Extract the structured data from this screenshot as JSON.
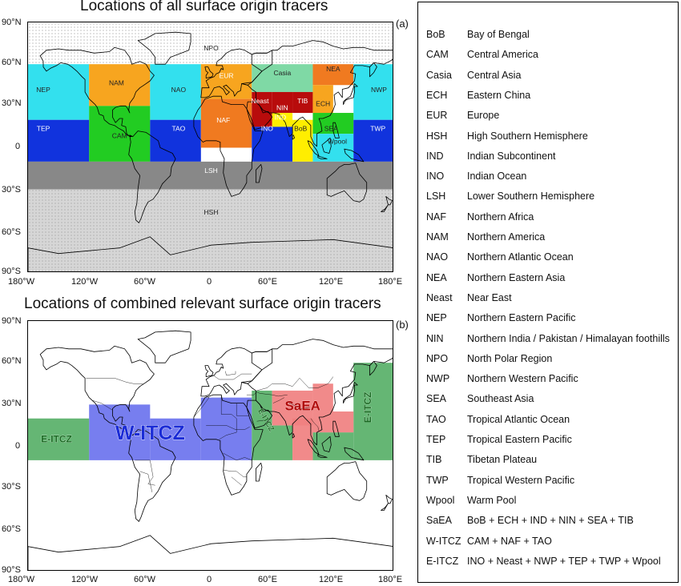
{
  "panel_a": {
    "title": "Locations of all surface origin tracers",
    "label": "(a)",
    "regions": [
      {
        "abbr": "NPO",
        "lon": [
          -180,
          180
        ],
        "lat": [
          60,
          90
        ],
        "color": "#ffffff",
        "text": "#222222"
      },
      {
        "abbr": "NEP",
        "lon": [
          -180,
          -120
        ],
        "lat": [
          20,
          60
        ],
        "color": "#33e0ee",
        "text": "#222222"
      },
      {
        "abbr": "NAM",
        "lon": [
          -120,
          -60
        ],
        "lat": [
          30,
          60
        ],
        "color": "#f7a51f",
        "text": "#222222"
      },
      {
        "abbr": "NAO",
        "lon": [
          -60,
          -10
        ],
        "lat": [
          20,
          60
        ],
        "color": "#33e0ee",
        "text": "#222222"
      },
      {
        "abbr": "EUR",
        "lon": [
          -10,
          40
        ],
        "lat": [
          35,
          60
        ],
        "color": "#f7a51f",
        "text": "#ffffff"
      },
      {
        "abbr": "Casia",
        "lon": [
          40,
          100
        ],
        "lat": [
          40,
          60
        ],
        "color": "#7fd9a5",
        "text": "#222222"
      },
      {
        "abbr": "NEA",
        "lon": [
          100,
          140
        ],
        "lat": [
          45,
          60
        ],
        "color": "#f07a20",
        "text": "#222222"
      },
      {
        "abbr": "NWP",
        "lon": [
          140,
          180
        ],
        "lat": [
          20,
          60
        ],
        "color": "#33e0ee",
        "text": "#222222"
      },
      {
        "abbr": "CAM",
        "lon": [
          -120,
          -60
        ],
        "lat": [
          -10,
          30
        ],
        "color": "#22cc22",
        "text": "#222222"
      },
      {
        "abbr": "TEP",
        "lon": [
          -180,
          -120
        ],
        "lat": [
          -10,
          20
        ],
        "color": "#1133dd",
        "text": "#ffffff"
      },
      {
        "abbr": "TAO",
        "lon": [
          -60,
          -10
        ],
        "lat": [
          -10,
          20
        ],
        "color": "#1133dd",
        "text": "#ffffff"
      },
      {
        "abbr": "NAF",
        "lon": [
          -10,
          40
        ],
        "lat": [
          0,
          35
        ],
        "color": "#f07a20",
        "text": "#ffffff"
      },
      {
        "abbr": "Neast",
        "lon": [
          40,
          60
        ],
        "lat": [
          15,
          40
        ],
        "color": "#b80c0c",
        "text": "#ffffff"
      },
      {
        "abbr": "NIN",
        "lon": [
          60,
          80
        ],
        "lat": [
          25,
          40
        ],
        "color": "#b80c0c",
        "text": "#ffffff"
      },
      {
        "abbr": "TIB",
        "lon": [
          80,
          100
        ],
        "lat": [
          25,
          40
        ],
        "color": "#b80c0c",
        "text": "#ffffff"
      },
      {
        "abbr": "ECH",
        "lon": [
          100,
          120
        ],
        "lat": [
          25,
          45
        ],
        "color": "#f7a51f",
        "text": "#222222"
      },
      {
        "abbr": "IND",
        "lon": [
          60,
          80
        ],
        "lat": [
          15,
          25
        ],
        "color": "#ffee00",
        "text": "#ffffff"
      },
      {
        "abbr": "INO",
        "lon": [
          40,
          80
        ],
        "lat": [
          -10,
          15
        ],
        "color": "#1133dd",
        "text": "#ffffff"
      },
      {
        "abbr": "BoB",
        "lon": [
          80,
          100
        ],
        "lat": [
          -10,
          20
        ],
        "color": "#ffee00",
        "text": "#222222"
      },
      {
        "abbr": "SEA",
        "lon": [
          100,
          140
        ],
        "lat": [
          10,
          25
        ],
        "color": "#22cc22",
        "text": "#222222"
      },
      {
        "abbr": "Wpool",
        "lon": [
          100,
          140
        ],
        "lat": [
          -10,
          10
        ],
        "color": "#33e0ee",
        "text": "#222222"
      },
      {
        "abbr": "TWP",
        "lon": [
          140,
          180
        ],
        "lat": [
          -10,
          20
        ],
        "color": "#1133dd",
        "text": "#ffffff"
      },
      {
        "abbr": "LSH",
        "lon": [
          -180,
          180
        ],
        "lat": [
          -30,
          -10
        ],
        "color": "#888888",
        "text": "#ffffff"
      },
      {
        "abbr": "HSH",
        "lon": [
          -180,
          180
        ],
        "lat": [
          -90,
          -30
        ],
        "color": "#d6d6d6",
        "text": "#222222"
      }
    ]
  },
  "panel_b": {
    "title": "Locations of combined relevant surface origin tracers",
    "label": "(b)",
    "regions": [
      {
        "abbr": "W-ITCZ",
        "color": "#6b73ee",
        "text": "#1a2bd6",
        "alpha": 0.92
      },
      {
        "abbr": "E-ITCZ",
        "color": "#58b068",
        "text": "#1a6a22",
        "alpha": 0.92
      },
      {
        "abbr": "SaEA",
        "color": "#f08080",
        "text": "#b00808",
        "alpha": 0.92
      }
    ],
    "labels": {
      "w_itcz": "W-ITCZ",
      "e_itcz_left": "E-ITCZ",
      "e_itcz_africa": "E-ITCZ",
      "e_itcz_right": "E-ITCZ",
      "saea": "SaEA"
    }
  },
  "axes": {
    "lat_ticks": [
      "90°N",
      "60°N",
      "30°N",
      "0",
      "30°S",
      "60°S",
      "90°S"
    ],
    "lon_ticks": [
      "180°W",
      "120°W",
      "60°W",
      "0",
      "60°E",
      "120°E",
      "180°E"
    ]
  },
  "legend": [
    {
      "abbr": "BoB",
      "name": "Bay of Bengal"
    },
    {
      "abbr": "CAM",
      "name": "Central America"
    },
    {
      "abbr": "Casia",
      "name": "Central Asia"
    },
    {
      "abbr": "ECH",
      "name": "Eastern China"
    },
    {
      "abbr": "EUR",
      "name": "Europe"
    },
    {
      "abbr": "HSH",
      "name": "High Southern Hemisphere"
    },
    {
      "abbr": "IND",
      "name": "Indian Subcontinent"
    },
    {
      "abbr": "INO",
      "name": "Indian Ocean"
    },
    {
      "abbr": "LSH",
      "name": "Lower Southern Hemisphere"
    },
    {
      "abbr": "NAF",
      "name": "Northern Africa"
    },
    {
      "abbr": "NAM",
      "name": "Northern America"
    },
    {
      "abbr": "NAO",
      "name": "Northern Atlantic Ocean"
    },
    {
      "abbr": "NEA",
      "name": "Northern Eastern Asia"
    },
    {
      "abbr": "Neast",
      "name": "Near East"
    },
    {
      "abbr": "NEP",
      "name": "Northern Eastern Pacific"
    },
    {
      "abbr": "NIN",
      "name": "Northern India / Pakistan / Himalayan foothills"
    },
    {
      "abbr": "NPO",
      "name": "North Polar Region"
    },
    {
      "abbr": "NWP",
      "name": "Northern Western Pacific"
    },
    {
      "abbr": "SEA",
      "name": "Southeast Asia"
    },
    {
      "abbr": "TAO",
      "name": "Tropical Atlantic Ocean"
    },
    {
      "abbr": "TEP",
      "name": "Tropical Eastern Pacific"
    },
    {
      "abbr": "TIB",
      "name": "Tibetan Plateau"
    },
    {
      "abbr": "TWP",
      "name": "Tropical Western Pacific"
    },
    {
      "abbr": "Wpool",
      "name": "Warm Pool"
    },
    {
      "abbr": "SaEA",
      "name": "BoB + ECH + IND + NIN + SEA + TIB"
    },
    {
      "abbr": "W-ITCZ",
      "name": "CAM + NAF + TAO"
    },
    {
      "abbr": "E-ITCZ",
      "name": "INO + Neast + NWP + TEP + TWP + Wpool"
    }
  ]
}
